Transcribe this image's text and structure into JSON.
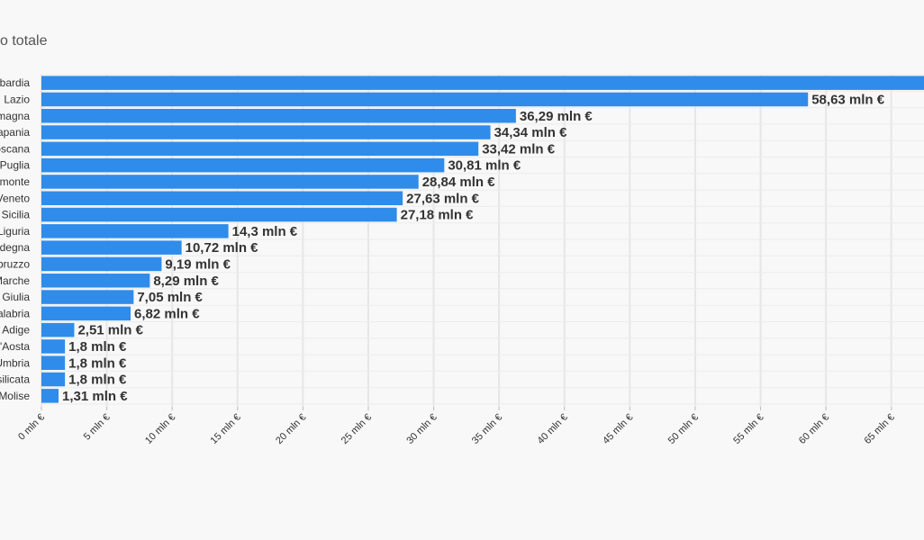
{
  "chart_data": {
    "type": "bar",
    "orientation": "horizontal",
    "title": "o totale",
    "categories": [
      "bardia",
      "Lazio",
      "magna",
      "apania",
      "oscana",
      "Puglia",
      "monte",
      "Veneto",
      "Sicilia",
      "Liguria",
      "degna",
      "bruzzo",
      "Marche",
      "Giulia",
      "alabria",
      "Adige",
      "'Aosta",
      "Umbria",
      "silicata",
      "Molise"
    ],
    "values": [
      67.5,
      58.63,
      36.29,
      34.34,
      33.42,
      30.81,
      28.84,
      27.63,
      27.18,
      14.3,
      10.72,
      9.19,
      8.29,
      7.05,
      6.82,
      2.51,
      1.8,
      1.8,
      1.8,
      1.31
    ],
    "value_labels": [
      "",
      "58,63 mln €",
      "36,29 mln €",
      "34,34 mln €",
      "33,42 mln €",
      "30,81 mln €",
      "28,84 mln €",
      "27,63 mln €",
      "27,18 mln €",
      "14,3 mln €",
      "10,72 mln €",
      "9,19 mln €",
      "8,29 mln €",
      "7,05 mln €",
      "6,82 mln €",
      "2,51 mln €",
      "1,8 mln €",
      "1,8 mln €",
      "1,8 mln €",
      "1,31 mln €"
    ],
    "x_ticks": [
      0,
      5,
      10,
      15,
      20,
      25,
      30,
      35,
      40,
      45,
      50,
      55,
      60,
      65
    ],
    "x_tick_labels": [
      "0 mln €",
      "5 mln €",
      "10 mln €",
      "15 mln €",
      "20 mln €",
      "25 mln €",
      "30 mln €",
      "35 mln €",
      "40 mln €",
      "45 mln €",
      "50 mln €",
      "55 mln €",
      "60 mln €",
      "65 mln €"
    ],
    "xlim": [
      0,
      67.5
    ],
    "grid": true,
    "bar_color": "#2f8ceb"
  }
}
